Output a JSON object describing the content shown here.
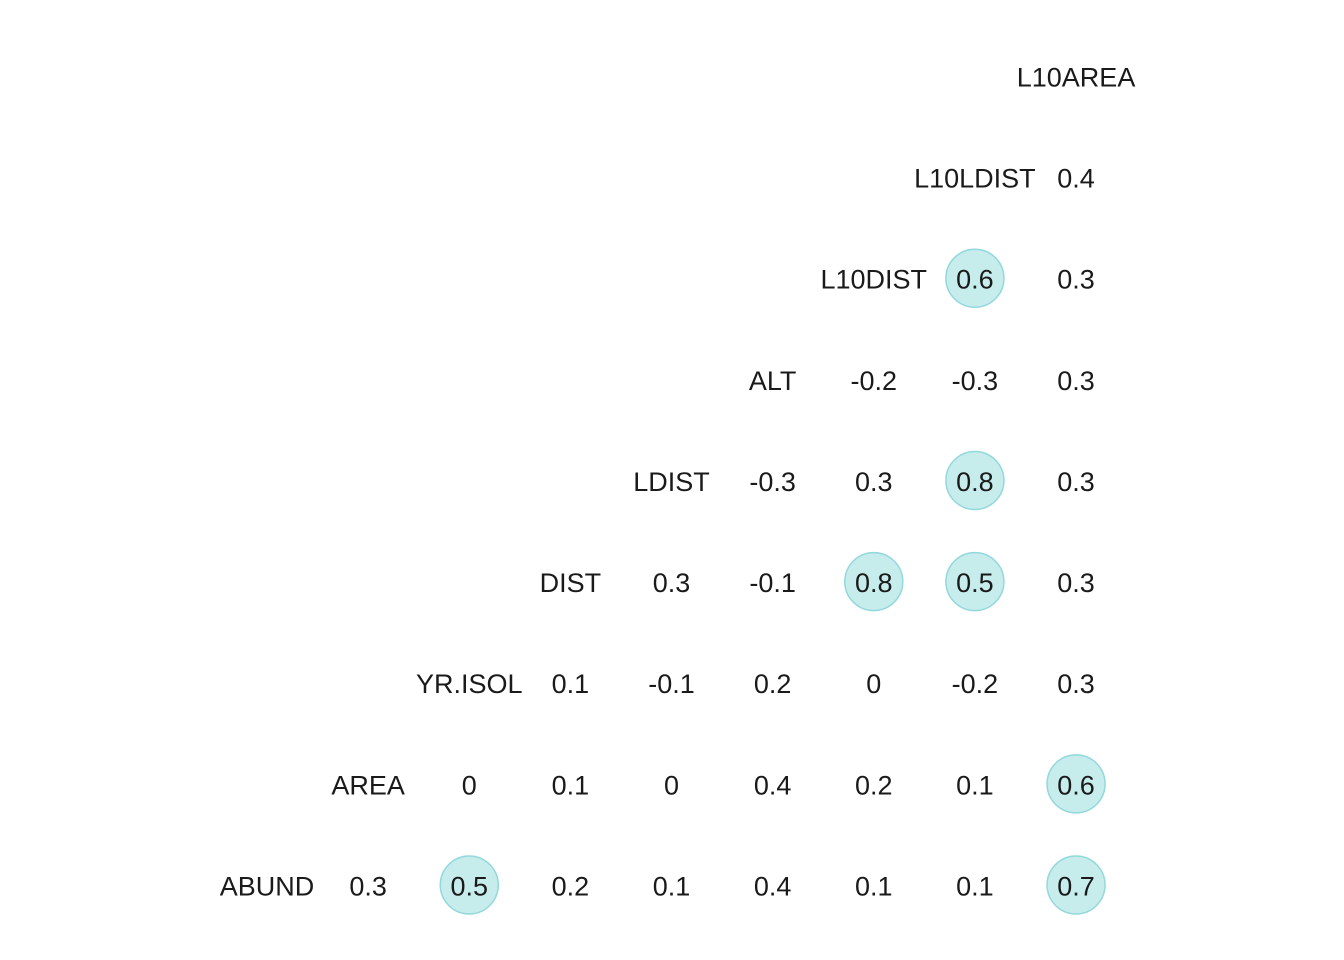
{
  "chart_data": {
    "type": "heatmap",
    "subtype": "correlation-matrix-lower-triangle",
    "title": "",
    "variables": [
      "ABUND",
      "AREA",
      "YR.ISOL",
      "DIST",
      "LDIST",
      "ALT",
      "L10DIST",
      "L10LDIST",
      "L10AREA"
    ],
    "visible_variable_labels": [
      "ABUND",
      "AREA",
      "YR.ISOL",
      "DIST",
      "LDIST",
      "ALT",
      "L10DIST",
      "L10LDIST",
      "L10AREA"
    ],
    "rows": [
      {
        "variable": "ABUND",
        "values": [
          "0.3",
          "0.5",
          "0.2",
          "0.1",
          "0.4",
          "0.1",
          "0.1",
          "0.7"
        ]
      },
      {
        "variable": "AREA",
        "values": [
          "0",
          "0.1",
          "0",
          "0.4",
          "0.2",
          "0.1",
          "0.6"
        ]
      },
      {
        "variable": "YR.ISOL",
        "values": [
          "0.1",
          "-0.1",
          "0.2",
          "0",
          "-0.2",
          "0.3"
        ]
      },
      {
        "variable": "DIST",
        "values": [
          "0.3",
          "-0.1",
          "0.8",
          "0.5",
          "0.3"
        ]
      },
      {
        "variable": "LDIST",
        "values": [
          "-0.3",
          "0.3",
          "0.8",
          "0.3"
        ]
      },
      {
        "variable": "ALT",
        "values": [
          "-0.2",
          "-0.3",
          "0.3"
        ]
      },
      {
        "variable": "L10DIST",
        "values": [
          "0.6",
          "0.3"
        ]
      },
      {
        "variable": "L10LDIST",
        "values": [
          "0.4"
        ]
      },
      {
        "variable": "L10AREA",
        "values": []
      }
    ],
    "highlight_threshold": 0.5,
    "highlight_color": "#a8e2e2",
    "highlight_stroke": "#92d8dc",
    "text_color": "#1a1a1a",
    "grid": false,
    "legend": "none"
  }
}
